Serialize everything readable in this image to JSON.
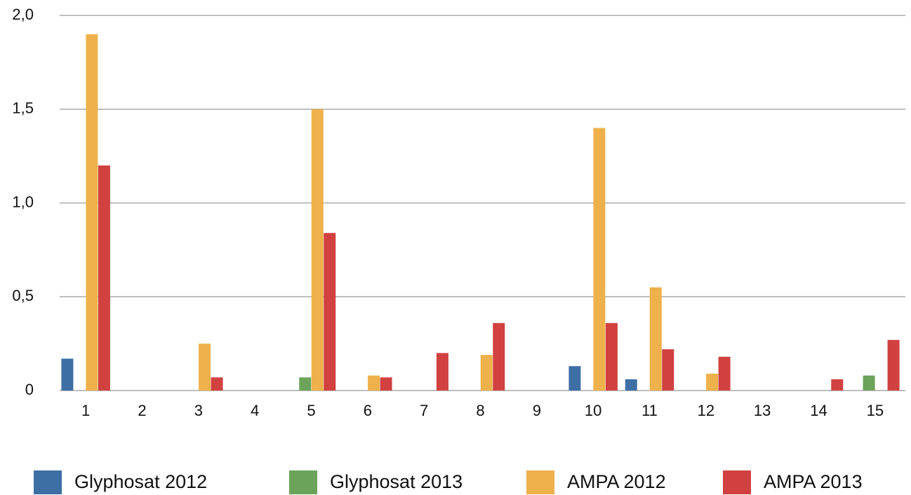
{
  "chart_data": {
    "type": "bar",
    "categories": [
      "1",
      "2",
      "3",
      "4",
      "5",
      "6",
      "7",
      "8",
      "9",
      "10",
      "11",
      "12",
      "13",
      "14",
      "15"
    ],
    "series": [
      {
        "name": "Glyphosat 2012",
        "color": "#3d6ea4",
        "values": [
          0.17,
          0,
          0,
          0,
          0,
          0,
          0,
          0,
          0,
          0.13,
          0.06,
          0,
          0,
          0,
          0
        ]
      },
      {
        "name": "Glyphosat 2013",
        "color": "#6ba35b",
        "values": [
          0,
          0,
          0,
          0,
          0.07,
          0,
          0,
          0,
          0,
          0,
          0,
          0,
          0,
          0,
          0.08
        ]
      },
      {
        "name": "AMPA 2012",
        "color": "#eeb14b",
        "values": [
          1.9,
          0,
          0.25,
          0,
          1.5,
          0.08,
          0,
          0.19,
          0,
          1.4,
          0.55,
          0.09,
          0,
          0,
          0
        ]
      },
      {
        "name": "AMPA 2013",
        "color": "#d04140",
        "values": [
          1.2,
          0,
          0.07,
          0,
          0.84,
          0.07,
          0.2,
          0.36,
          0,
          0.36,
          0.22,
          0.18,
          0,
          0.06,
          0.27
        ]
      }
    ],
    "ylim": [
      0,
      2
    ],
    "yticks": [
      0,
      {
        "value": 0.5,
        "label": "0,5"
      },
      {
        "value": 1,
        "label": "1,0"
      },
      {
        "value": 1.5,
        "label": "1,5"
      },
      {
        "value": 2,
        "label": "2,0"
      }
    ],
    "grid": true,
    "legend": "bottom"
  }
}
